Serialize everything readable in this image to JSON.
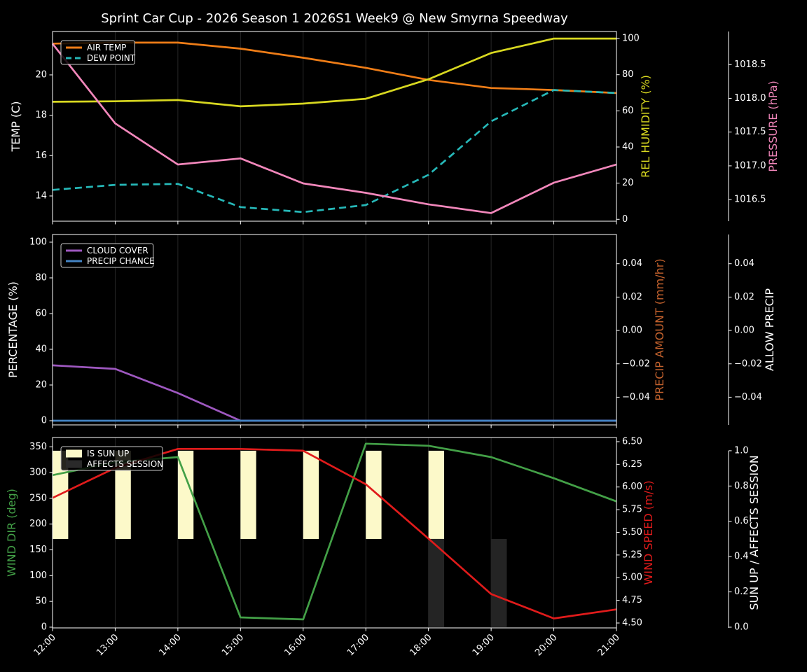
{
  "figure": {
    "title": "Sprint Car Cup - 2026 Season 1 2026S1 Week9 @ New Smyrna Speedway",
    "background": "#000000",
    "text_color": "#ffffff",
    "grid_color": "#262626",
    "spine_color": "#ffffff",
    "legend_border_color": "#c8c8c8"
  },
  "x_axis": {
    "hours": [
      12,
      13,
      14,
      15,
      16,
      17,
      18,
      19,
      20,
      21
    ],
    "labels": [
      "12:00",
      "13:00",
      "14:00",
      "15:00",
      "16:00",
      "17:00",
      "18:00",
      "19:00",
      "20:00",
      "21:00"
    ]
  },
  "chart_data": [
    {
      "type": "line",
      "name": "temperature-humidity-pressure",
      "legend": [
        {
          "label": "AIR TEMP",
          "color": "#ef7d17",
          "style": "line"
        },
        {
          "label": "DEW POINT",
          "color": "#26b8b8",
          "style": "dashed"
        }
      ],
      "axes": {
        "left": {
          "title": "TEMP (C)",
          "title_color": "#ffffff",
          "range": [
            12.75,
            22.15
          ],
          "ticks": [
            14,
            16,
            18,
            20
          ],
          "decimals": 0
        },
        "right1": {
          "title": "REL HUMIDITY (%)",
          "title_color": "#d8d820",
          "range": [
            -1.05,
            103.9
          ],
          "ticks": [
            0,
            20,
            40,
            60,
            80,
            100
          ],
          "decimals": 0
        },
        "right2": {
          "title": "PRESSURE (hPa)",
          "title_color": "#f287bb",
          "range": [
            1016.18,
            1018.99
          ],
          "ticks": [
            1016.5,
            1017.0,
            1017.5,
            1018.0,
            1018.5
          ],
          "decimals": 1
        }
      },
      "series": [
        {
          "name": "AIR TEMP",
          "axis": "left",
          "color": "#ef7d17",
          "dashed": false,
          "values": [
            21.55,
            21.6,
            21.6,
            21.3,
            20.85,
            20.35,
            19.75,
            19.35,
            19.25,
            19.1
          ]
        },
        {
          "name": "DEW POINT",
          "axis": "left",
          "color": "#26b8b8",
          "dashed": true,
          "values": [
            14.3,
            14.55,
            14.6,
            13.45,
            13.2,
            13.55,
            15.05,
            17.7,
            19.25,
            19.1
          ]
        },
        {
          "name": "REL HUMIDITY",
          "axis": "right1",
          "color": "#d8d820",
          "dashed": false,
          "values": [
            65,
            65.3,
            66,
            62.5,
            64,
            66.7,
            77.5,
            92,
            100,
            100
          ]
        },
        {
          "name": "PRESSURE",
          "axis": "right2",
          "color": "#f287bb",
          "dashed": false,
          "values": [
            1018.81,
            1017.63,
            1017.02,
            1017.11,
            1016.74,
            1016.6,
            1016.43,
            1016.3,
            1016.75,
            1017.02
          ]
        }
      ]
    },
    {
      "type": "line",
      "name": "cloud-precipitation",
      "legend": [
        {
          "label": "CLOUD COVER",
          "color": "#9e58c0",
          "style": "line"
        },
        {
          "label": "PRECIP CHANCE",
          "color": "#4384c4",
          "style": "line"
        }
      ],
      "axes": {
        "left": {
          "title": "PERCENTAGE (%)",
          "title_color": "#ffffff",
          "range": [
            -2.35,
            104.3
          ],
          "ticks": [
            0,
            20,
            40,
            60,
            80,
            100
          ],
          "decimals": 0
        },
        "right1": {
          "title": "PRECIP AMOUNT (mm/hr)",
          "title_color": "#c4622d",
          "range": [
            -0.0566,
            0.0575
          ],
          "ticks": [
            -0.04,
            -0.02,
            0,
            0.02,
            0.04
          ],
          "decimals": 2
        },
        "right2": {
          "title": "ALLOW PRECIP",
          "title_color": "#ffffff",
          "range": [
            -0.0566,
            0.0575
          ],
          "ticks": [
            -0.04,
            -0.02,
            0,
            0.02,
            0.04
          ],
          "decimals": 2
        }
      },
      "series": [
        {
          "name": "CLOUD COVER",
          "axis": "left",
          "color": "#9e58c0",
          "dashed": false,
          "values": [
            31,
            29,
            15.5,
            0,
            0,
            0,
            0,
            0,
            0,
            0
          ]
        },
        {
          "name": "PRECIP CHANCE",
          "axis": "left",
          "color": "#4384c4",
          "dashed": false,
          "values": [
            0,
            0,
            0,
            0,
            0,
            0,
            0,
            0,
            0,
            0
          ]
        }
      ]
    },
    {
      "type": "line+bar",
      "name": "wind-sun-session",
      "legend": [
        {
          "label": "IS SUN UP",
          "color": "#fcf9c9",
          "style": "patch"
        },
        {
          "label": "AFFECTS SESSION",
          "color": "#2a2a2a",
          "style": "patch"
        }
      ],
      "axes": {
        "left": {
          "title": "WIND DIR (deg)",
          "title_color": "#43a047",
          "range": [
            -1.4,
            368
          ],
          "ticks": [
            0,
            50,
            100,
            150,
            200,
            250,
            300,
            350
          ],
          "decimals": 0
        },
        "right1": {
          "title": "WIND SPEED (m/s)",
          "title_color": "#e01b1b",
          "range": [
            4.446,
            6.546
          ],
          "ticks": [
            4.5,
            4.75,
            5.0,
            5.25,
            5.5,
            5.75,
            6.0,
            6.25,
            6.5
          ],
          "decimals": 2
        },
        "right2": {
          "title": "SUN UP / AFFECTS SESSION",
          "title_color": "#ffffff",
          "range": [
            -0.004,
            1.075
          ],
          "ticks": [
            0,
            0.2,
            0.4,
            0.6,
            0.8,
            1.0
          ],
          "decimals": 1
        }
      },
      "bars": [
        {
          "name": "IS SUN UP",
          "color": "#fcf9c9",
          "axis": "right2",
          "hours": [
            12,
            13,
            14,
            15,
            16,
            17,
            18
          ],
          "from": 0.5,
          "to": 1.0,
          "width_hours": 0.25
        },
        {
          "name": "AFFECTS SESSION",
          "color": "#242424",
          "axis": "right2",
          "hours": [
            18,
            19
          ],
          "from": 0.0,
          "to": 0.5,
          "width_hours": 0.25
        }
      ],
      "series": [
        {
          "name": "WIND DIR",
          "axis": "left",
          "color": "#43a047",
          "dashed": false,
          "values": [
            295,
            320,
            330,
            19,
            15,
            356,
            352,
            330,
            289,
            244
          ]
        },
        {
          "name": "WIND SPEED",
          "axis": "right1",
          "color": "#e01b1b",
          "dashed": false,
          "values": [
            5.88,
            6.21,
            6.42,
            6.42,
            6.4,
            6.03,
            5.43,
            4.82,
            4.55,
            4.65
          ]
        }
      ]
    }
  ]
}
